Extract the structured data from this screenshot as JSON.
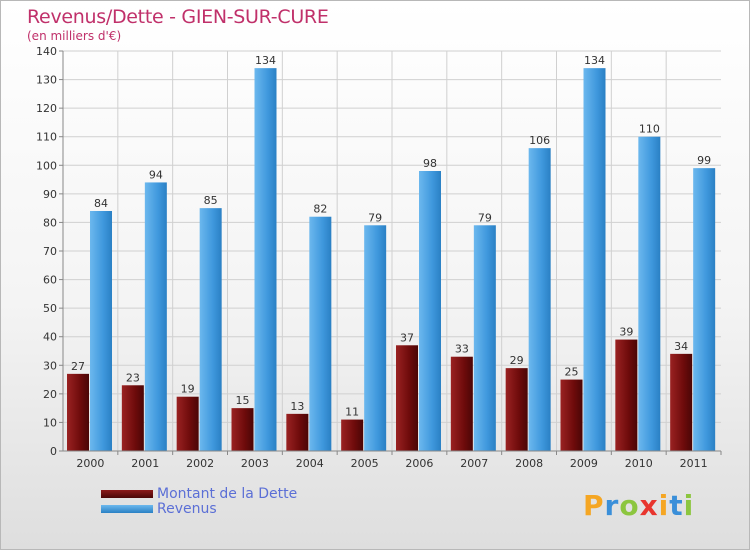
{
  "header": {
    "title": "Revenus/Dette - GIEN-SUR-CURE",
    "subtitle": "(en milliers d'€)"
  },
  "chart_data": {
    "type": "bar",
    "title": "Revenus/Dette - GIEN-SUR-CURE",
    "subtitle": "(en milliers d'€)",
    "xlabel": "",
    "ylabel": "",
    "ylim": [
      0,
      140
    ],
    "yticks": [
      0,
      10,
      20,
      30,
      40,
      50,
      60,
      70,
      80,
      90,
      100,
      110,
      120,
      130,
      140
    ],
    "grid": true,
    "legend_position": "bottom-left",
    "categories": [
      "2000",
      "2001",
      "2002",
      "2003",
      "2004",
      "2005",
      "2006",
      "2007",
      "2008",
      "2009",
      "2010",
      "2011"
    ],
    "series": [
      {
        "name": "Montant de la Dette",
        "color": "#7a1010",
        "values": [
          27,
          23,
          19,
          15,
          13,
          11,
          37,
          33,
          29,
          25,
          39,
          34
        ]
      },
      {
        "name": "Revenus",
        "color": "#4aa0e0",
        "values": [
          84,
          94,
          85,
          134,
          82,
          79,
          98,
          79,
          106,
          134,
          110,
          99
        ]
      }
    ]
  },
  "legend": {
    "items": [
      {
        "label": "Montant de la Dette",
        "color": "#7a1010"
      },
      {
        "label": "Revenus",
        "color": "#4aa0e0"
      }
    ]
  },
  "brand": {
    "letters": [
      "P",
      "r",
      "o",
      "x",
      "i",
      "t",
      "i"
    ],
    "colors": [
      "#f5a623",
      "#3a8fd9",
      "#8cc63f",
      "#e8352e",
      "#f5a623",
      "#3a8fd9",
      "#8cc63f"
    ]
  }
}
